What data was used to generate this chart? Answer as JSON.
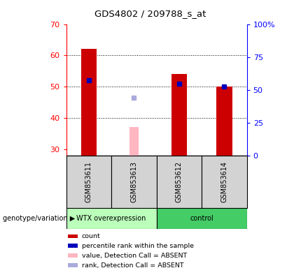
{
  "title": "GDS4802 / 209788_s_at",
  "samples": [
    "GSM853611",
    "GSM853613",
    "GSM853612",
    "GSM853614"
  ],
  "ylim_left": [
    28,
    70
  ],
  "ylim_right": [
    0,
    100
  ],
  "yticks_left": [
    30,
    40,
    50,
    60,
    70
  ],
  "yticks_right": [
    0,
    25,
    50,
    75,
    100
  ],
  "right_tick_labels": [
    "0",
    "25",
    "50",
    "75",
    "100%"
  ],
  "bars_count": [
    62.0,
    null,
    54.0,
    50.0
  ],
  "bars_value_absent": [
    null,
    37.0,
    null,
    null
  ],
  "bars_rank": [
    52.0,
    null,
    51.0,
    50.0
  ],
  "bars_rank_absent": [
    null,
    46.5,
    null,
    null
  ],
  "bar_width": 0.35,
  "count_color": "#CC0000",
  "rank_color": "#0000BB",
  "value_absent_color": "#FFB6C1",
  "rank_absent_color": "#AAAADD",
  "legend_items": [
    {
      "color": "#CC0000",
      "label": "count"
    },
    {
      "color": "#0000BB",
      "label": "percentile rank within the sample"
    },
    {
      "color": "#FFB6C1",
      "label": "value, Detection Call = ABSENT"
    },
    {
      "color": "#AAAADD",
      "label": "rank, Detection Call = ABSENT"
    }
  ],
  "wtx_color": "#BBFFBB",
  "control_color": "#44CC66",
  "sample_bg_color": "#D3D3D3"
}
